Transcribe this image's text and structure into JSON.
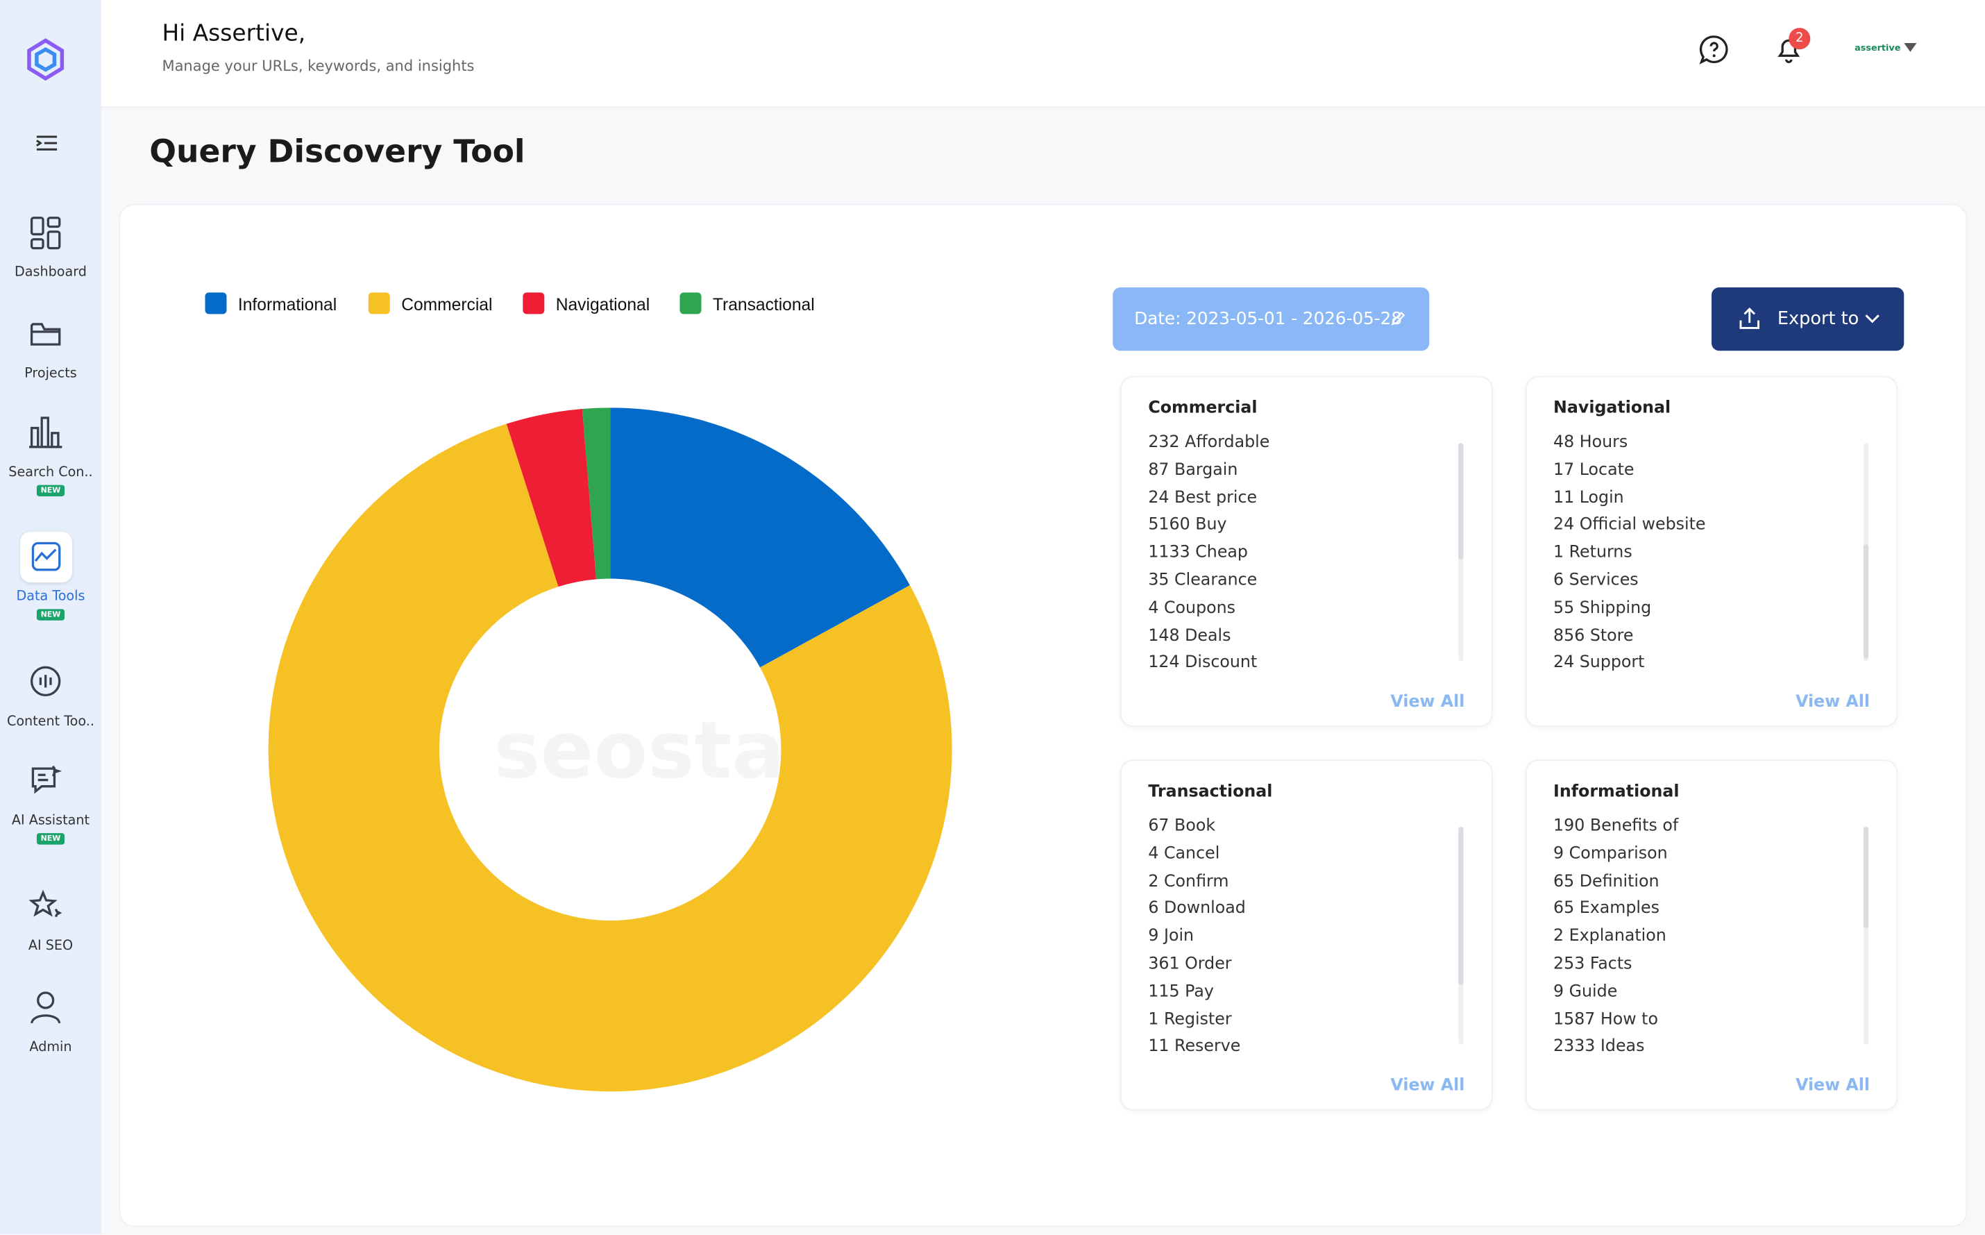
{
  "header": {
    "greeting": "Hi Assertive,",
    "subtitle": "Manage your URLs, keywords, and insights",
    "notification_count": "2",
    "user": "assertive"
  },
  "sidebar": {
    "items": [
      {
        "label": "Dashboard"
      },
      {
        "label": "Projects"
      },
      {
        "label": "Search Con..",
        "badge": "NEW"
      },
      {
        "label": "Data Tools",
        "badge": "NEW"
      },
      {
        "label": "Content Too.."
      },
      {
        "label": "AI Assistant",
        "badge": "NEW"
      },
      {
        "label": "AI SEO"
      },
      {
        "label": "Admin"
      }
    ]
  },
  "page_title": "Query Discovery Tool",
  "chart_data": {
    "type": "donut",
    "categories": [
      "Informational",
      "Commercial",
      "Navigational",
      "Transactional"
    ],
    "values": [
      17,
      78,
      3.6,
      1.3
    ],
    "colors": [
      "#056bc9",
      "#f5c125",
      "#ee1f35",
      "#2fa54f"
    ],
    "watermark": "seostack"
  },
  "date_filter": "Date: 2023-05-01 - 2026-05-28",
  "export_button": "Export to",
  "panels": [
    {
      "title": "Commercial",
      "items": [
        "232 Affordable",
        "87 Bargain",
        "24 Best price",
        "5160 Buy",
        "1133 Cheap",
        "35 Clearance",
        "4 Coupons",
        "148 Deals",
        "124 Discount"
      ],
      "link": "View All"
    },
    {
      "title": "Navigational",
      "items": [
        "48 Hours",
        "17 Locate",
        "11 Login",
        "24 Official website",
        "1 Returns",
        "6 Services",
        "55 Shipping",
        "856 Store",
        "24 Support"
      ],
      "link": "View All"
    },
    {
      "title": "Transactional",
      "items": [
        "67 Book",
        "4 Cancel",
        "2 Confirm",
        "6 Download",
        "9 Join",
        "361 Order",
        "115 Pay",
        "1 Register",
        "11 Reserve"
      ],
      "link": "View All"
    },
    {
      "title": "Informational",
      "items": [
        "190 Benefits of",
        "9 Comparison",
        "65 Definition",
        "65 Examples",
        "2 Explanation",
        "253 Facts",
        "9 Guide",
        "1587 How to",
        "2333 Ideas"
      ],
      "link": "View All"
    }
  ]
}
